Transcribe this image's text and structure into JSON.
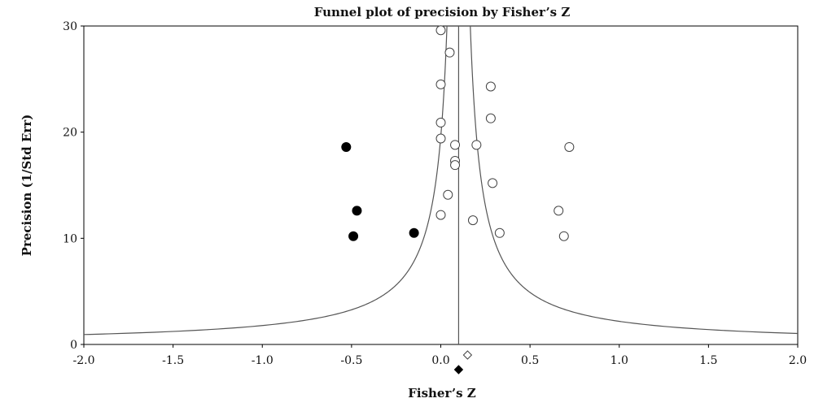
{
  "chart_data": {
    "type": "scatter",
    "title": "Funnel plot of precision by Fisher’s Z",
    "xlabel": "Fisher’s Z",
    "ylabel": "Precision (1/Std Err)",
    "xlim": [
      -2.0,
      2.0
    ],
    "ylim": [
      0,
      30
    ],
    "x_ticks": [
      "-2.0",
      "-1.5",
      "-1.0",
      "-0.5",
      "0.0",
      "0.5",
      "1.0",
      "1.5",
      "2.0"
    ],
    "y_ticks": [
      "0",
      "10",
      "20",
      "30"
    ],
    "grid": false,
    "legend": "none",
    "series": [
      {
        "marker": "open-circle",
        "points": [
          [
            0.0,
            29.6
          ],
          [
            0.05,
            27.5
          ],
          [
            0.0,
            24.5
          ],
          [
            0.28,
            24.3
          ],
          [
            0.28,
            21.3
          ],
          [
            0.0,
            20.9
          ],
          [
            0.0,
            19.4
          ],
          [
            0.08,
            18.8
          ],
          [
            0.2,
            18.8
          ],
          [
            0.72,
            18.6
          ],
          [
            0.08,
            17.3
          ],
          [
            0.08,
            16.9
          ],
          [
            0.29,
            15.2
          ],
          [
            0.04,
            14.1
          ],
          [
            0.0,
            12.2
          ],
          [
            0.66,
            12.6
          ],
          [
            0.18,
            11.7
          ],
          [
            0.33,
            10.5
          ],
          [
            0.69,
            10.2
          ]
        ]
      },
      {
        "marker": "filled-circle",
        "points": [
          [
            -0.53,
            18.6
          ],
          [
            -0.47,
            12.6
          ],
          [
            -0.49,
            10.2
          ],
          [
            -0.15,
            10.5
          ]
        ]
      }
    ],
    "center_line_x": 0.1,
    "funnel_center": 0.1,
    "summary_diamonds": [
      {
        "marker": "open-diamond",
        "x": 0.15
      },
      {
        "marker": "filled-diamond",
        "x": 0.1
      }
    ],
    "colors": {
      "open": "#ffffff",
      "filled": "#000000",
      "stroke": "#444444",
      "axis": "#000000"
    }
  }
}
